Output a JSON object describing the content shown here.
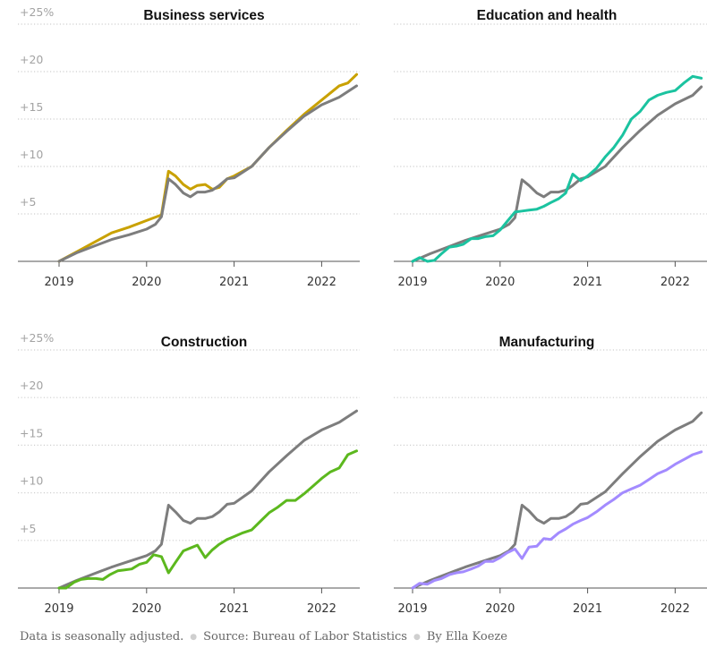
{
  "footer": {
    "note": "Data is seasonally adjusted.",
    "source": "Source: Bureau of Labor Statistics",
    "byline": "By Ella Koeze"
  },
  "chart_data": [
    {
      "type": "line",
      "title": "Business services",
      "x_ticks": [
        "2019",
        "2020",
        "2021",
        "2022"
      ],
      "y_ticks": [
        "+25%",
        "+20",
        "+15",
        "+10",
        "+5"
      ],
      "ylim": [
        0,
        25
      ],
      "xlim": [
        2019.0,
        2022.45
      ],
      "grid": true,
      "series": [
        {
          "color": "#c9a100",
          "x": [
            2019.0,
            2019.2,
            2019.4,
            2019.6,
            2019.8,
            2020.0,
            2020.17,
            2020.25,
            2020.33,
            2020.42,
            2020.5,
            2020.58,
            2020.67,
            2020.75,
            2020.83,
            2020.92,
            2021.0,
            2021.2,
            2021.4,
            2021.6,
            2021.8,
            2022.0,
            2022.2,
            2022.3,
            2022.4
          ],
          "values": [
            0,
            1.0,
            2.0,
            3.0,
            3.6,
            4.3,
            4.9,
            9.5,
            9.0,
            8.1,
            7.6,
            8.0,
            8.1,
            7.6,
            7.8,
            8.7,
            9.0,
            10.0,
            12.0,
            13.8,
            15.5,
            17.0,
            18.5,
            18.8,
            19.7
          ]
        },
        {
          "color": "#7d7d7d",
          "x": [
            2019.0,
            2019.2,
            2019.4,
            2019.6,
            2019.8,
            2020.0,
            2020.1,
            2020.17,
            2020.25,
            2020.33,
            2020.42,
            2020.5,
            2020.58,
            2020.67,
            2020.75,
            2020.83,
            2020.92,
            2021.0,
            2021.2,
            2021.4,
            2021.6,
            2021.8,
            2022.0,
            2022.2,
            2022.4
          ],
          "values": [
            0,
            0.9,
            1.6,
            2.3,
            2.8,
            3.4,
            3.9,
            4.7,
            8.7,
            8.1,
            7.2,
            6.8,
            7.3,
            7.3,
            7.5,
            8.0,
            8.7,
            8.8,
            10.0,
            12.0,
            13.7,
            15.3,
            16.5,
            17.3,
            18.5
          ]
        }
      ]
    },
    {
      "type": "line",
      "title": "Education and health",
      "x_ticks": [
        "2019",
        "2020",
        "2021",
        "2022"
      ],
      "ylim": [
        0,
        25
      ],
      "xlim": [
        2019.0,
        2022.3
      ],
      "grid": true,
      "series": [
        {
          "color": "#7d7d7d",
          "x": [
            2019.0,
            2019.2,
            2019.4,
            2019.6,
            2019.8,
            2020.0,
            2020.1,
            2020.17,
            2020.25,
            2020.33,
            2020.42,
            2020.5,
            2020.58,
            2020.67,
            2020.75,
            2020.83,
            2020.92,
            2021.0,
            2021.2,
            2021.4,
            2021.6,
            2021.8,
            2022.0,
            2022.2,
            2022.3
          ],
          "values": [
            0,
            0.8,
            1.5,
            2.2,
            2.8,
            3.4,
            3.9,
            4.6,
            8.6,
            8.0,
            7.2,
            6.8,
            7.3,
            7.3,
            7.5,
            8.0,
            8.7,
            8.9,
            10.0,
            12.0,
            13.8,
            15.4,
            16.6,
            17.5,
            18.4
          ]
        },
        {
          "color": "#1bc3a0",
          "x": [
            2019.0,
            2019.08,
            2019.17,
            2019.25,
            2019.33,
            2019.42,
            2019.5,
            2019.58,
            2019.67,
            2019.75,
            2019.83,
            2019.92,
            2020.0,
            2020.08,
            2020.17,
            2020.25,
            2020.33,
            2020.42,
            2020.5,
            2020.58,
            2020.67,
            2020.75,
            2020.83,
            2020.92,
            2021.0,
            2021.1,
            2021.2,
            2021.3,
            2021.4,
            2021.5,
            2021.6,
            2021.7,
            2021.8,
            2021.9,
            2022.0,
            2022.1,
            2022.2,
            2022.3
          ],
          "values": [
            0,
            0.4,
            0.0,
            0.1,
            0.8,
            1.5,
            1.6,
            1.8,
            2.4,
            2.4,
            2.6,
            2.7,
            3.3,
            4.2,
            5.2,
            5.3,
            5.4,
            5.5,
            5.8,
            6.2,
            6.6,
            7.2,
            9.2,
            8.5,
            9.0,
            9.8,
            11.0,
            12.0,
            13.3,
            15.0,
            15.8,
            17.0,
            17.5,
            17.8,
            18.0,
            18.8,
            19.5,
            19.3
          ]
        }
      ]
    },
    {
      "type": "line",
      "title": "Construction",
      "x_ticks": [
        "2019",
        "2020",
        "2021",
        "2022"
      ],
      "y_ticks": [
        "+25%",
        "+20",
        "+15",
        "+10",
        "+5"
      ],
      "ylim": [
        0,
        25
      ],
      "xlim": [
        2019.0,
        2022.45
      ],
      "grid": true,
      "series": [
        {
          "color": "#7d7d7d",
          "x": [
            2019.0,
            2019.2,
            2019.4,
            2019.6,
            2019.8,
            2020.0,
            2020.1,
            2020.17,
            2020.25,
            2020.33,
            2020.42,
            2020.5,
            2020.58,
            2020.67,
            2020.75,
            2020.83,
            2020.92,
            2021.0,
            2021.2,
            2021.4,
            2021.6,
            2021.8,
            2022.0,
            2022.2,
            2022.4
          ],
          "values": [
            0,
            0.8,
            1.5,
            2.2,
            2.8,
            3.4,
            3.9,
            4.6,
            8.7,
            8.0,
            7.1,
            6.8,
            7.3,
            7.3,
            7.5,
            8.0,
            8.8,
            8.9,
            10.2,
            12.2,
            13.9,
            15.5,
            16.6,
            17.4,
            18.6
          ]
        },
        {
          "color": "#5cb81e",
          "x": [
            2019.0,
            2019.08,
            2019.17,
            2019.25,
            2019.33,
            2019.42,
            2019.5,
            2019.58,
            2019.67,
            2019.75,
            2019.83,
            2019.92,
            2020.0,
            2020.08,
            2020.17,
            2020.25,
            2020.33,
            2020.42,
            2020.5,
            2020.58,
            2020.67,
            2020.75,
            2020.83,
            2020.92,
            2021.0,
            2021.1,
            2021.2,
            2021.3,
            2021.4,
            2021.5,
            2021.6,
            2021.7,
            2021.8,
            2021.9,
            2022.0,
            2022.1,
            2022.2,
            2022.3,
            2022.4
          ],
          "values": [
            0,
            0.0,
            0.6,
            0.9,
            1.0,
            1.0,
            0.9,
            1.4,
            1.8,
            1.9,
            2.0,
            2.5,
            2.7,
            3.5,
            3.3,
            1.6,
            2.7,
            3.9,
            4.2,
            4.5,
            3.2,
            4.0,
            4.6,
            5.1,
            5.4,
            5.8,
            6.1,
            7.0,
            7.9,
            8.5,
            9.2,
            9.2,
            9.9,
            10.7,
            11.5,
            12.2,
            12.6,
            14.0,
            14.4
          ]
        }
      ]
    },
    {
      "type": "line",
      "title": "Manufacturing",
      "x_ticks": [
        "2019",
        "2020",
        "2021",
        "2022"
      ],
      "ylim": [
        0,
        25
      ],
      "xlim": [
        2019.0,
        2022.3
      ],
      "grid": true,
      "series": [
        {
          "color": "#7d7d7d",
          "x": [
            2019.0,
            2019.2,
            2019.4,
            2019.6,
            2019.8,
            2020.0,
            2020.1,
            2020.17,
            2020.25,
            2020.33,
            2020.42,
            2020.5,
            2020.58,
            2020.67,
            2020.75,
            2020.83,
            2020.92,
            2021.0,
            2021.2,
            2021.4,
            2021.6,
            2021.8,
            2022.0,
            2022.2,
            2022.3
          ],
          "values": [
            0,
            0.8,
            1.5,
            2.2,
            2.8,
            3.4,
            3.9,
            4.6,
            8.7,
            8.1,
            7.2,
            6.8,
            7.3,
            7.3,
            7.5,
            8.0,
            8.8,
            8.9,
            10.1,
            12.0,
            13.8,
            15.4,
            16.6,
            17.5,
            18.4
          ]
        },
        {
          "color": "#a38bff",
          "x": [
            2019.0,
            2019.08,
            2019.17,
            2019.25,
            2019.33,
            2019.42,
            2019.5,
            2019.58,
            2019.67,
            2019.75,
            2019.83,
            2019.92,
            2020.0,
            2020.08,
            2020.17,
            2020.25,
            2020.33,
            2020.42,
            2020.5,
            2020.58,
            2020.67,
            2020.75,
            2020.83,
            2020.92,
            2021.0,
            2021.1,
            2021.2,
            2021.3,
            2021.4,
            2021.5,
            2021.6,
            2021.7,
            2021.8,
            2021.9,
            2022.0,
            2022.1,
            2022.2,
            2022.3
          ],
          "values": [
            0,
            0.5,
            0.4,
            0.8,
            1.0,
            1.4,
            1.6,
            1.7,
            2.0,
            2.3,
            2.8,
            2.8,
            3.2,
            3.7,
            4.1,
            3.1,
            4.3,
            4.4,
            5.2,
            5.1,
            5.8,
            6.2,
            6.7,
            7.1,
            7.4,
            8.0,
            8.7,
            9.3,
            10.0,
            10.4,
            10.8,
            11.4,
            12.0,
            12.4,
            13.0,
            13.5,
            14.0,
            14.3
          ]
        }
      ]
    }
  ]
}
